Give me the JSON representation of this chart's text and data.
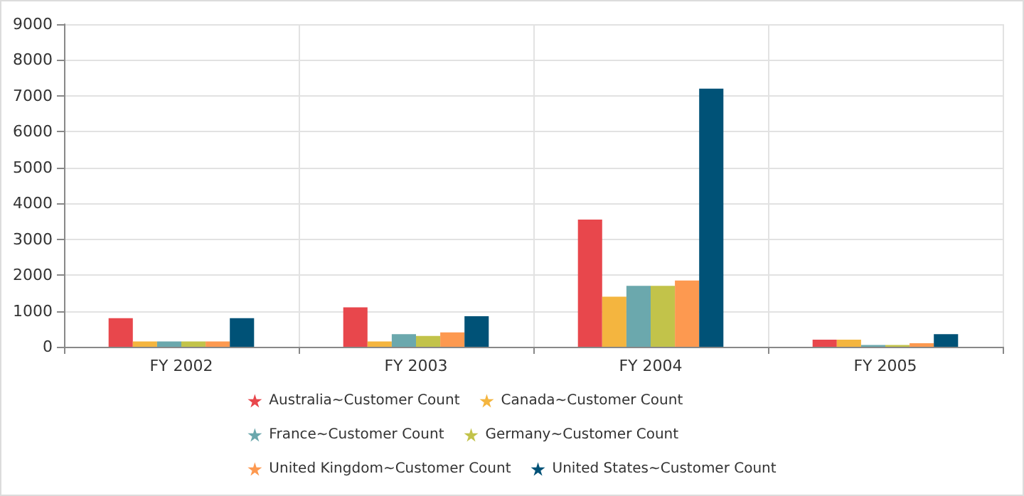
{
  "chart_data": {
    "type": "bar",
    "categories": [
      "FY 2002",
      "FY 2003",
      "FY 2004",
      "FY 2005"
    ],
    "series": [
      {
        "name": "Australia~Customer Count",
        "color": "#e8474c",
        "values": [
          800,
          1100,
          3550,
          200
        ]
      },
      {
        "name": "Canada~Customer Count",
        "color": "#f4b53f",
        "values": [
          150,
          150,
          1400,
          200
        ]
      },
      {
        "name": "France~Customer Count",
        "color": "#6ba8ad",
        "values": [
          150,
          350,
          1700,
          50
        ]
      },
      {
        "name": "Germany~Customer Count",
        "color": "#c2c34a",
        "values": [
          150,
          300,
          1700,
          50
        ]
      },
      {
        "name": "United Kingdom~Customer Count",
        "color": "#fd9950",
        "values": [
          150,
          400,
          1850,
          100
        ]
      },
      {
        "name": "United States~Customer Count",
        "color": "#005277",
        "values": [
          800,
          850,
          7200,
          350
        ]
      }
    ],
    "ylim": [
      0,
      9000
    ],
    "yticks": [
      0,
      1000,
      2000,
      3000,
      4000,
      5000,
      6000,
      7000,
      8000,
      9000
    ],
    "grid": true,
    "legend": "bottom",
    "marker": "star"
  }
}
